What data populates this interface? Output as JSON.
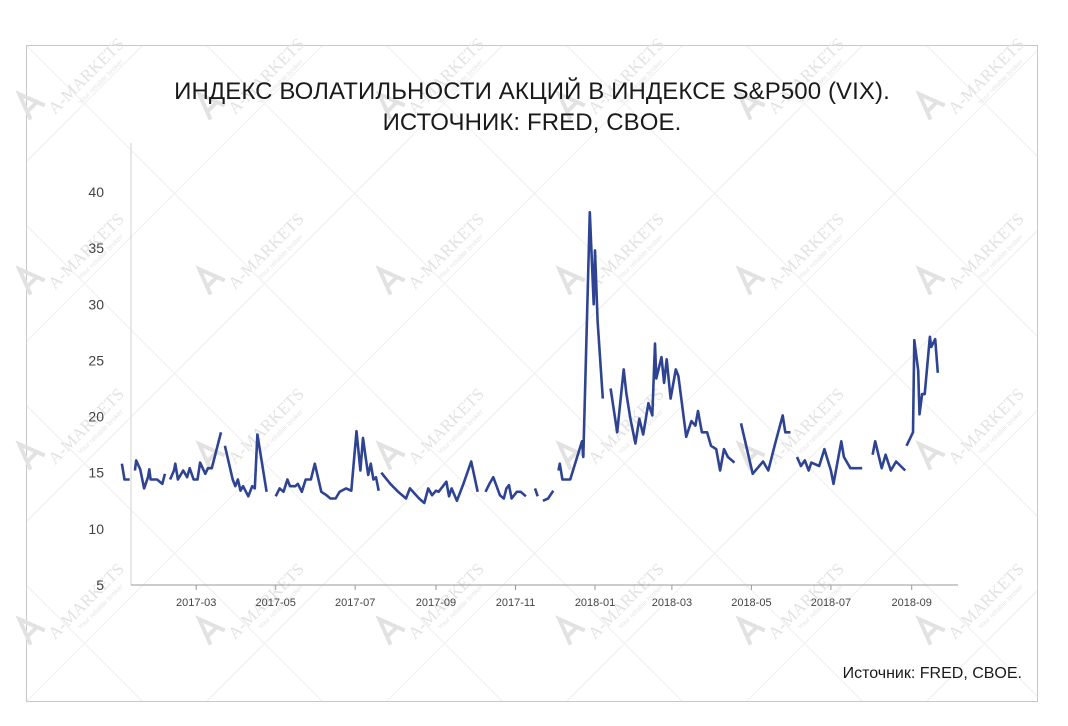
{
  "chart_data": {
    "type": "line",
    "title": "ИНДЕКС ВОЛАТИЛЬНОСТИ АКЦИЙ В ИНДЕКСЕ S&P500 (VIX).",
    "subtitle": "ИСТОЧНИК: FRED, CBOE.",
    "xlabel": "",
    "ylabel": "",
    "ylim": [
      5,
      40
    ],
    "yticks": [
      "5",
      "10",
      "15",
      "20",
      "25",
      "30",
      "35",
      "40"
    ],
    "xticks": [
      "2017-03",
      "2017-05",
      "2017-07",
      "2017-09",
      "2017-11",
      "2018-01",
      "2018-03",
      "2018-05",
      "2018-07",
      "2018-09"
    ],
    "grid": false,
    "series_color": "#2e4493",
    "series": [
      {
        "values": [
          [
            "2017-01-03",
            15.8
          ],
          [
            "2017-01-05",
            14.4
          ],
          [
            "2017-01-09",
            14.4
          ],
          null,
          [
            "2017-01-13",
            15.2
          ],
          [
            "2017-01-14",
            16.1
          ],
          [
            "2017-01-17",
            15.3
          ],
          [
            "2017-01-20",
            13.6
          ],
          [
            "2017-01-23",
            14.6
          ],
          [
            "2017-01-24",
            15.3
          ],
          [
            "2017-01-25",
            14.4
          ],
          [
            "2017-01-30",
            14.4
          ],
          [
            "2017-02-03",
            14.0
          ],
          [
            "2017-02-05",
            14.9
          ],
          null,
          [
            "2017-02-09",
            14.4
          ],
          [
            "2017-02-12",
            15.2
          ],
          [
            "2017-02-13",
            15.8
          ],
          [
            "2017-02-15",
            14.4
          ],
          [
            "2017-02-19",
            15.2
          ],
          [
            "2017-02-22",
            14.6
          ],
          [
            "2017-02-24",
            15.4
          ],
          [
            "2017-02-27",
            14.4
          ],
          [
            "2017-03-02",
            14.4
          ],
          [
            "2017-03-04",
            15.9
          ],
          [
            "2017-03-08",
            14.9
          ],
          [
            "2017-03-10",
            15.4
          ],
          [
            "2017-03-13",
            15.4
          ],
          [
            "2017-03-20",
            18.6
          ],
          null,
          [
            "2017-03-23",
            17.4
          ],
          [
            "2017-03-29",
            14.4
          ],
          [
            "2017-03-31",
            13.8
          ],
          [
            "2017-04-02",
            14.4
          ],
          [
            "2017-04-04",
            13.4
          ],
          [
            "2017-04-06",
            13.8
          ],
          [
            "2017-04-10",
            12.9
          ],
          [
            "2017-04-13",
            13.8
          ],
          [
            "2017-04-15",
            13.6
          ],
          [
            "2017-04-17",
            18.4
          ],
          [
            "2017-04-24",
            13.3
          ],
          null,
          [
            "2017-05-01",
            12.9
          ],
          [
            "2017-05-04",
            13.6
          ],
          [
            "2017-05-07",
            13.3
          ],
          [
            "2017-05-10",
            14.4
          ],
          [
            "2017-05-12",
            13.8
          ],
          [
            "2017-05-16",
            13.8
          ],
          [
            "2017-05-18",
            14.0
          ],
          [
            "2017-05-21",
            13.3
          ],
          [
            "2017-05-24",
            14.4
          ],
          [
            "2017-05-28",
            14.4
          ],
          [
            "2017-05-31",
            15.8
          ],
          [
            "2017-06-05",
            13.3
          ],
          [
            "2017-06-09",
            13.0
          ],
          [
            "2017-06-12",
            12.7
          ],
          [
            "2017-06-16",
            12.7
          ],
          [
            "2017-06-19",
            13.3
          ],
          [
            "2017-06-24",
            13.6
          ],
          [
            "2017-06-28",
            13.4
          ],
          [
            "2017-07-02",
            18.7
          ],
          [
            "2017-07-05",
            15.2
          ],
          [
            "2017-07-07",
            18.1
          ],
          [
            "2017-07-09",
            16.4
          ],
          [
            "2017-07-11",
            14.8
          ],
          [
            "2017-07-13",
            15.8
          ],
          [
            "2017-07-15",
            14.4
          ],
          [
            "2017-07-17",
            14.6
          ],
          [
            "2017-07-19",
            13.4
          ],
          null,
          [
            "2017-07-21",
            15.0
          ],
          [
            "2017-07-28",
            14.0
          ],
          [
            "2017-08-03",
            13.3
          ],
          [
            "2017-08-09",
            12.7
          ],
          [
            "2017-08-12",
            13.6
          ],
          [
            "2017-08-19",
            12.7
          ],
          [
            "2017-08-23",
            12.3
          ],
          [
            "2017-08-26",
            13.6
          ],
          [
            "2017-08-29",
            13.0
          ],
          [
            "2017-09-01",
            13.4
          ],
          [
            "2017-09-03",
            13.3
          ],
          [
            "2017-09-09",
            14.2
          ],
          [
            "2017-09-11",
            12.9
          ],
          [
            "2017-09-13",
            13.6
          ],
          [
            "2017-09-17",
            12.5
          ],
          [
            "2017-09-22",
            14.0
          ],
          [
            "2017-09-28",
            16.0
          ],
          [
            "2017-10-03",
            13.3
          ],
          null,
          [
            "2017-10-09",
            13.3
          ],
          [
            "2017-10-12",
            14.0
          ],
          [
            "2017-10-15",
            14.6
          ],
          [
            "2017-10-20",
            13.0
          ],
          [
            "2017-10-23",
            12.7
          ],
          [
            "2017-10-25",
            13.6
          ],
          [
            "2017-10-27",
            13.9
          ],
          [
            "2017-10-29",
            12.7
          ],
          [
            "2017-11-02",
            13.3
          ],
          [
            "2017-11-05",
            13.3
          ],
          [
            "2017-11-09",
            12.9
          ],
          null,
          [
            "2017-11-16",
            13.6
          ],
          [
            "2017-11-18",
            12.9
          ],
          null,
          [
            "2017-11-22",
            12.5
          ],
          [
            "2017-11-26",
            12.7
          ],
          [
            "2017-11-30",
            13.4
          ],
          null,
          [
            "2017-12-04",
            15.2
          ],
          [
            "2017-12-05",
            15.8
          ],
          [
            "2017-12-07",
            14.4
          ],
          [
            "2017-12-13",
            14.4
          ],
          [
            "2017-12-22",
            17.8
          ],
          [
            "2017-12-23",
            16.4
          ],
          [
            "2017-12-28",
            38.2
          ],
          [
            "2017-12-31",
            30.0
          ],
          [
            "2018-01-01",
            34.8
          ],
          [
            "2018-01-03",
            28.5
          ],
          [
            "2018-01-07",
            21.6
          ],
          null,
          [
            "2018-01-13",
            22.5
          ],
          [
            "2018-01-18",
            18.6
          ],
          [
            "2018-01-23",
            24.2
          ],
          [
            "2018-01-25",
            22.1
          ],
          [
            "2018-01-28",
            19.9
          ],
          [
            "2018-02-01",
            17.6
          ],
          [
            "2018-02-04",
            19.8
          ],
          [
            "2018-02-07",
            18.4
          ],
          [
            "2018-02-11",
            21.2
          ],
          [
            "2018-02-14",
            20.1
          ],
          [
            "2018-02-16",
            26.5
          ],
          [
            "2018-02-17",
            23.4
          ],
          [
            "2018-02-21",
            25.3
          ],
          [
            "2018-02-23",
            23.0
          ],
          [
            "2018-02-25",
            25.1
          ],
          [
            "2018-02-28",
            21.6
          ],
          [
            "2018-03-04",
            24.2
          ],
          [
            "2018-03-06",
            23.6
          ],
          [
            "2018-03-12",
            18.2
          ],
          [
            "2018-03-16",
            19.6
          ],
          [
            "2018-03-19",
            19.2
          ],
          [
            "2018-03-21",
            20.5
          ],
          [
            "2018-03-24",
            18.6
          ],
          [
            "2018-03-28",
            18.6
          ],
          [
            "2018-03-31",
            17.4
          ],
          [
            "2018-04-04",
            17.1
          ],
          [
            "2018-04-07",
            15.2
          ],
          [
            "2018-04-10",
            17.1
          ],
          [
            "2018-04-13",
            16.4
          ],
          [
            "2018-04-18",
            15.9
          ],
          null,
          [
            "2018-04-23",
            19.4
          ],
          [
            "2018-05-02",
            14.9
          ],
          [
            "2018-05-10",
            16.0
          ],
          [
            "2018-05-14",
            15.2
          ],
          [
            "2018-05-19",
            17.5
          ],
          [
            "2018-05-25",
            20.1
          ],
          [
            "2018-05-27",
            18.6
          ],
          [
            "2018-05-31",
            18.6
          ],
          null,
          [
            "2018-06-05",
            16.4
          ],
          [
            "2018-06-08",
            15.6
          ],
          [
            "2018-06-11",
            16.1
          ],
          [
            "2018-06-14",
            15.2
          ],
          [
            "2018-06-16",
            15.9
          ],
          [
            "2018-06-22",
            15.6
          ],
          [
            "2018-06-26",
            17.1
          ],
          [
            "2018-07-01",
            15.2
          ],
          [
            "2018-07-03",
            14.0
          ],
          [
            "2018-07-09",
            17.8
          ],
          [
            "2018-07-11",
            16.4
          ],
          [
            "2018-07-16",
            15.4
          ],
          [
            "2018-07-25",
            15.4
          ],
          null,
          [
            "2018-07-29",
            16.4
          ],
          null,
          [
            "2018-08-02",
            16.6
          ],
          [
            "2018-08-04",
            17.8
          ],
          [
            "2018-08-09",
            15.4
          ],
          [
            "2018-08-12",
            16.6
          ],
          [
            "2018-08-16",
            15.2
          ],
          [
            "2018-08-20",
            16.0
          ],
          [
            "2018-08-27",
            15.2
          ],
          null,
          [
            "2018-08-28",
            17.4
          ],
          [
            "2018-09-02",
            18.6
          ],
          [
            "2018-09-03",
            26.8
          ],
          [
            "2018-09-06",
            24.1
          ],
          [
            "2018-09-07",
            20.2
          ],
          [
            "2018-09-09",
            22.0
          ],
          [
            "2018-09-11",
            22.0
          ],
          [
            "2018-09-15",
            27.1
          ],
          [
            "2018-09-16",
            26.2
          ],
          [
            "2018-09-19",
            26.9
          ],
          [
            "2018-09-21",
            23.9
          ]
        ]
      }
    ]
  },
  "footer": {
    "source_text": "Источник: FRED, CBOE."
  },
  "watermark": {
    "text": "A-MARKETS",
    "tagline": "Your reliable broker"
  }
}
